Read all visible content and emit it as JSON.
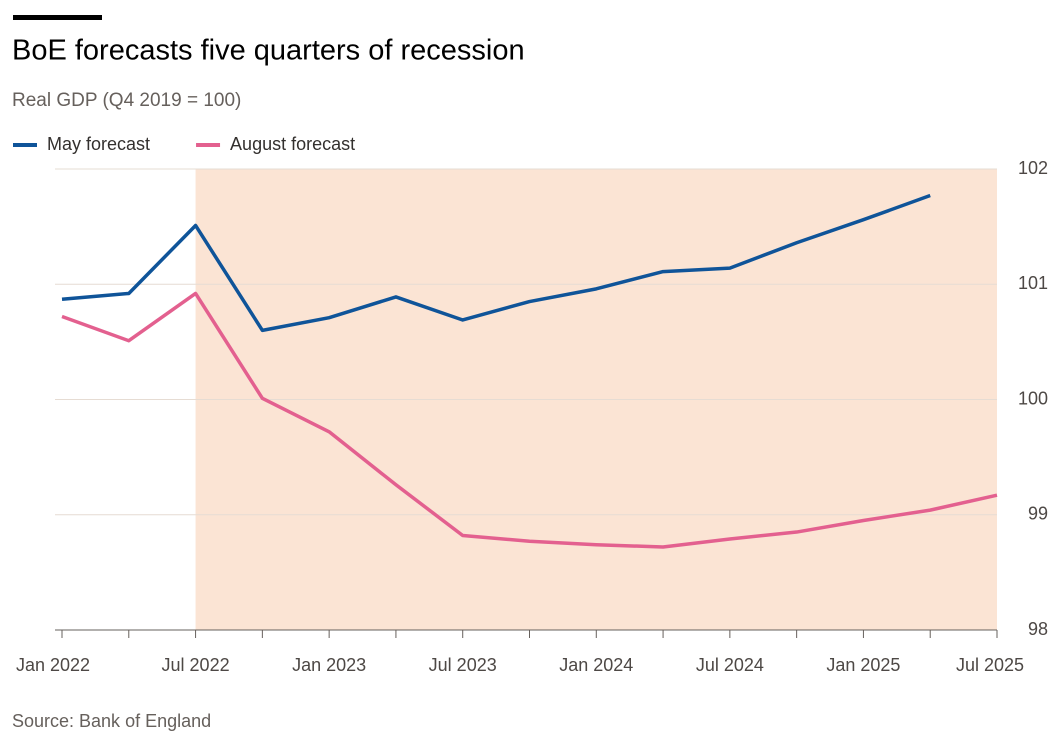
{
  "chart_data": {
    "type": "line",
    "title": "BoE forecasts five quarters of recession",
    "subtitle": "Real GDP (Q4 2019 = 100)",
    "source": "Source: Bank of England",
    "categories": [
      "Jan 2022",
      null,
      "Jul 2022",
      null,
      "Jan 2023",
      null,
      "Jul 2023",
      null,
      "Jan 2024",
      null,
      "Jul 2024",
      null,
      "Jan 2025",
      null,
      "Jul 2025"
    ],
    "series": [
      {
        "name": "May forecast",
        "color": "#0f5499",
        "values": [
          100.87,
          100.92,
          101.51,
          100.6,
          100.71,
          100.89,
          100.69,
          100.85,
          100.96,
          101.11,
          101.14,
          101.36,
          101.56,
          101.77,
          null
        ]
      },
      {
        "name": "August forecast",
        "color": "#e3608f",
        "values": [
          100.72,
          100.51,
          100.92,
          100.01,
          99.72,
          99.26,
          98.82,
          98.77,
          98.74,
          98.72,
          98.79,
          98.85,
          98.95,
          99.04,
          99.17
        ]
      }
    ],
    "shaded_range": [
      "Jul 2022",
      "Jul 2025"
    ],
    "shade_color": "#fbe4d4",
    "ylim": [
      98,
      102
    ],
    "yticks": [
      98,
      99,
      100,
      101,
      102
    ],
    "grid": true,
    "y_axis_side": "right",
    "legend": "top-left"
  }
}
